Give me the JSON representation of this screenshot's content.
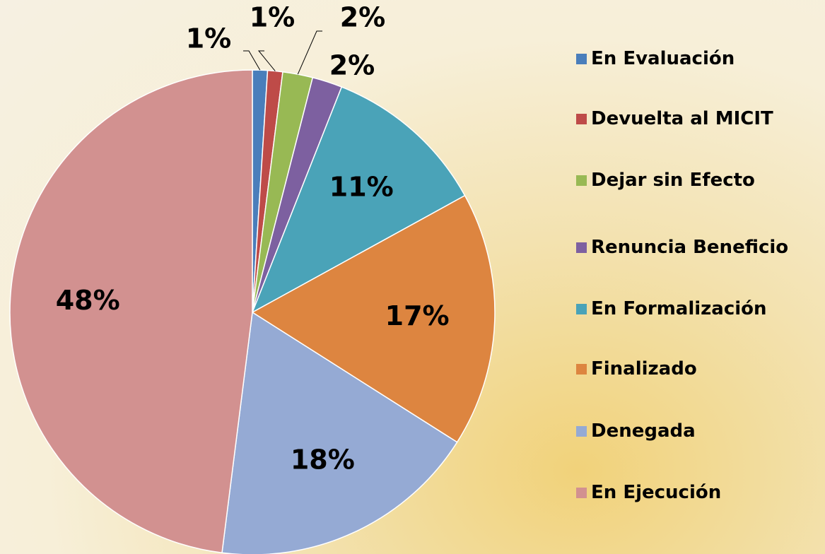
{
  "chart_data": {
    "type": "pie",
    "categories": [
      "En Evaluación",
      "Devuelta al MICIT",
      "Dejar sin Efecto",
      "Renuncia Beneficio",
      "En Formalización",
      "Finalizado",
      "Denegada",
      "En Ejecución"
    ],
    "values": [
      1,
      1,
      2,
      2,
      11,
      17,
      18,
      48
    ],
    "value_labels": [
      "1%",
      "1%",
      "2%",
      "2%",
      "11%",
      "17%",
      "18%",
      "48%"
    ],
    "colors": [
      "#4a7ebb",
      "#be4b48",
      "#98b954",
      "#7d60a0",
      "#4aa3b8",
      "#dd8540",
      "#95aad4",
      "#d29190"
    ],
    "legend": "right"
  }
}
